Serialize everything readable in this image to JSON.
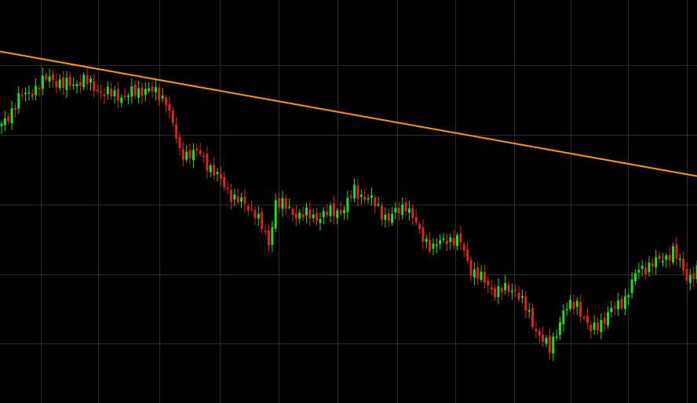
{
  "chart_data": {
    "type": "candlestick",
    "background": "#000000",
    "grid": true,
    "grid_color": "#2a2a2a",
    "up_color": "#22dd22",
    "down_color": "#dd2222",
    "trendline_color": "#ff9900",
    "trendline": {
      "from": [
        0,
        1.0
      ],
      "to": [
        203,
        0.525
      ]
    },
    "anchors": [
      [
        0,
        0.715
      ],
      [
        5,
        0.82
      ],
      [
        10,
        0.86
      ],
      [
        14,
        0.905
      ],
      [
        18,
        0.87
      ],
      [
        24,
        0.89
      ],
      [
        30,
        0.84
      ],
      [
        36,
        0.83
      ],
      [
        42,
        0.86
      ],
      [
        48,
        0.82
      ],
      [
        52,
        0.615
      ],
      [
        58,
        0.61
      ],
      [
        64,
        0.505
      ],
      [
        68,
        0.44
      ],
      [
        74,
        0.39
      ],
      [
        78,
        0.265
      ],
      [
        80,
        0.43
      ],
      [
        86,
        0.38
      ],
      [
        92,
        0.37
      ],
      [
        100,
        0.4
      ],
      [
        103,
        0.47
      ],
      [
        108,
        0.43
      ],
      [
        113,
        0.36
      ],
      [
        118,
        0.42
      ],
      [
        122,
        0.31
      ],
      [
        126,
        0.25
      ],
      [
        130,
        0.29
      ],
      [
        134,
        0.27
      ],
      [
        137,
        0.17
      ],
      [
        144,
        0.085
      ],
      [
        150,
        0.095
      ],
      [
        156,
        -0.06
      ],
      [
        160,
        -0.14
      ],
      [
        164,
        0.01
      ],
      [
        168,
        0.04
      ],
      [
        172,
        -0.07
      ],
      [
        178,
        0.01
      ],
      [
        182,
        0.06
      ],
      [
        186,
        0.17
      ],
      [
        192,
        0.2
      ],
      [
        196,
        0.24
      ],
      [
        200,
        0.14
      ],
      [
        203,
        0.16
      ]
    ]
  }
}
